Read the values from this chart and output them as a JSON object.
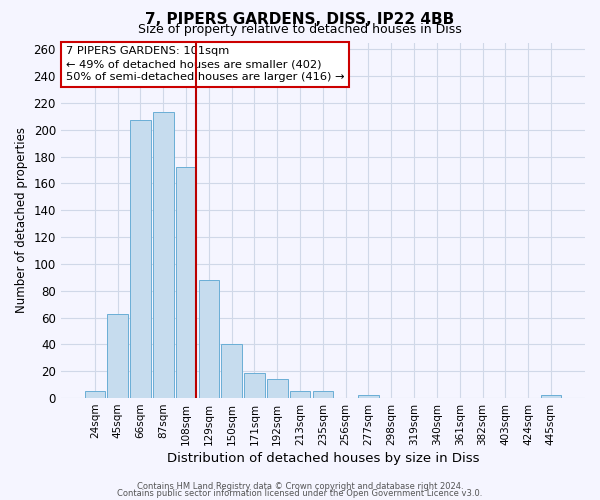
{
  "title": "7, PIPERS GARDENS, DISS, IP22 4BB",
  "subtitle": "Size of property relative to detached houses in Diss",
  "xlabel": "Distribution of detached houses by size in Diss",
  "ylabel": "Number of detached properties",
  "bar_labels": [
    "24sqm",
    "45sqm",
    "66sqm",
    "87sqm",
    "108sqm",
    "129sqm",
    "150sqm",
    "171sqm",
    "192sqm",
    "213sqm",
    "235sqm",
    "256sqm",
    "277sqm",
    "298sqm",
    "319sqm",
    "340sqm",
    "361sqm",
    "382sqm",
    "403sqm",
    "424sqm",
    "445sqm"
  ],
  "bar_values": [
    5,
    63,
    207,
    213,
    172,
    88,
    40,
    19,
    14,
    5,
    5,
    0,
    2,
    0,
    0,
    0,
    0,
    0,
    0,
    0,
    2
  ],
  "bar_color": "#c6dcee",
  "bar_edge_color": "#6aaed6",
  "ylim": [
    0,
    265
  ],
  "yticks": [
    0,
    20,
    40,
    60,
    80,
    100,
    120,
    140,
    160,
    180,
    200,
    220,
    240,
    260
  ],
  "vline_color": "#bb0000",
  "annotation_line1": "7 PIPERS GARDENS: 101sqm",
  "annotation_line2": "← 49% of detached houses are smaller (402)",
  "annotation_line3": "50% of semi-detached houses are larger (416) →",
  "footer_line1": "Contains HM Land Registry data © Crown copyright and database right 2024.",
  "footer_line2": "Contains public sector information licensed under the Open Government Licence v3.0.",
  "background_color": "#f5f5ff",
  "grid_color": "#d0d8e8"
}
